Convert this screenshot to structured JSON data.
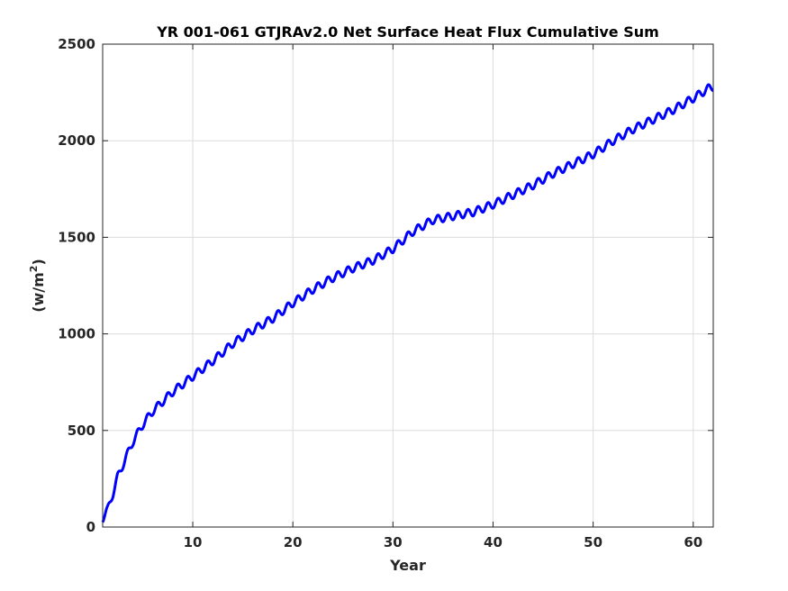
{
  "chart_data": {
    "type": "line",
    "title": "YR 001-061 GTJRAv2.0 Net Surface Heat Flux  Cumulative Sum",
    "xlabel": "Year",
    "ylabel": "(w/m",
    "ylabel_sup": "2",
    "ylabel_close": ")",
    "xlim": [
      1,
      62
    ],
    "ylim": [
      0,
      2500
    ],
    "xticks": [
      10,
      20,
      30,
      40,
      50,
      60
    ],
    "yticks": [
      0,
      500,
      1000,
      1500,
      2000,
      2500
    ],
    "xtick_labels": [
      "10",
      "20",
      "30",
      "40",
      "50",
      "60"
    ],
    "ytick_labels": [
      "0",
      "500",
      "1000",
      "1500",
      "2000",
      "2500"
    ],
    "grid": true,
    "series": [
      {
        "color": "#0000ff",
        "seasonal_amplitude": 20,
        "cycles_per_year": 1,
        "trend": {
          "x": [
            1,
            1.5,
            2,
            2.5,
            3,
            3.5,
            4,
            5,
            6,
            7,
            8,
            9,
            10,
            12,
            14,
            16,
            18,
            20,
            22,
            24,
            26,
            28,
            30,
            32,
            34,
            36,
            38,
            40,
            42,
            44,
            46,
            48,
            50,
            52,
            54,
            56,
            58,
            60,
            61.5,
            62
          ],
          "y": [
            45,
            90,
            170,
            260,
            320,
            380,
            440,
            530,
            600,
            650,
            700,
            740,
            780,
            860,
            950,
            1020,
            1080,
            1160,
            1230,
            1290,
            1340,
            1380,
            1440,
            1530,
            1590,
            1610,
            1630,
            1670,
            1720,
            1770,
            1830,
            1880,
            1930,
            2000,
            2060,
            2110,
            2160,
            2220,
            2270,
            2280
          ]
        }
      }
    ]
  }
}
